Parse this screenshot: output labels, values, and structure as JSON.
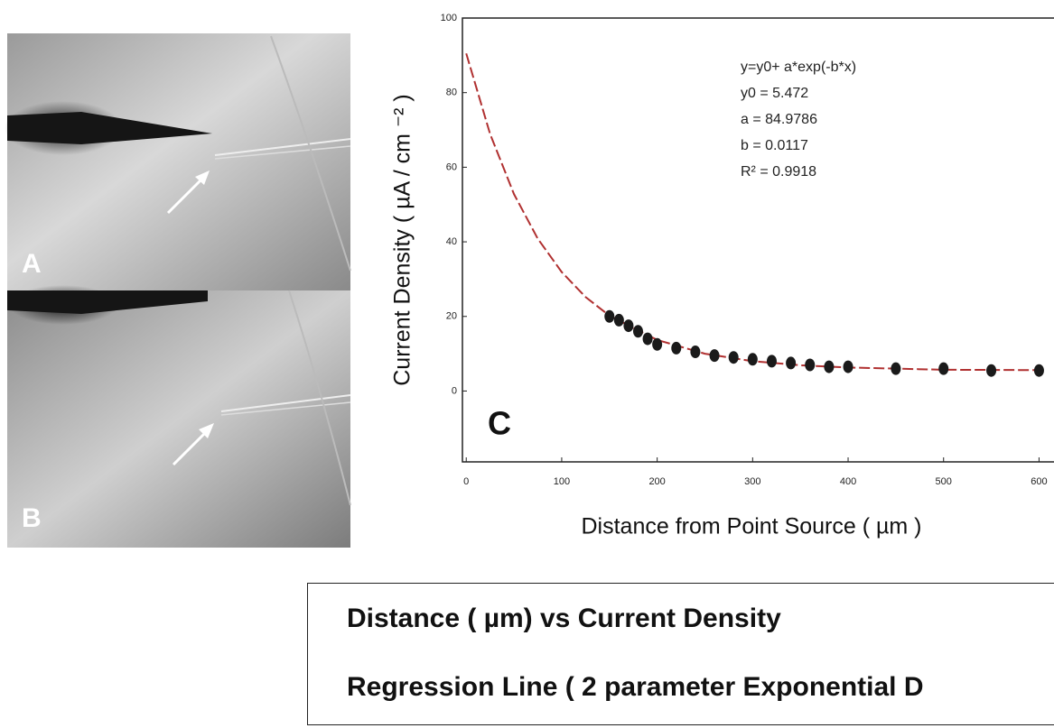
{
  "panels": {
    "a": "A",
    "b": "B"
  },
  "chart_data": {
    "type": "scatter",
    "panel_label": "C",
    "x_label": "Distance from Point Source ( µm )",
    "y_label": "Current Density ( µA / cm ⁻² )",
    "annotations": [
      "y=y0+ a*exp(-b*x)",
      "y0 = 5.472",
      "a = 84.9786",
      "b = 0.0117",
      "R² = 0.9918"
    ],
    "xlim": [
      -4,
      610
    ],
    "ylim": [
      -19,
      100
    ],
    "xticks": [
      0,
      100,
      200,
      300,
      400,
      500,
      600
    ],
    "yticks": [
      0,
      20,
      40,
      60,
      80,
      100
    ],
    "series": [
      {
        "name": "Distance ( µm) vs Current Density",
        "color": "#1a1a1a",
        "x": [
          150,
          160,
          170,
          180,
          190,
          200,
          220,
          240,
          260,
          280,
          300,
          320,
          340,
          360,
          380,
          400,
          450,
          500,
          550,
          600
        ],
        "values": [
          20,
          19,
          17.5,
          16,
          14,
          12.5,
          11.5,
          10.5,
          9.5,
          9,
          8.5,
          8,
          7.5,
          7,
          6.5,
          6.5,
          6,
          6,
          5.5,
          5.5
        ]
      },
      {
        "name": "Regression Line ( 2 parameter Exponential D",
        "color": "#b03030",
        "x": [
          0,
          25,
          50,
          75,
          100,
          125,
          150,
          200,
          250,
          300,
          350,
          400,
          500,
          600
        ],
        "values": [
          90.5,
          68.9,
          52.8,
          40.8,
          31.9,
          25.2,
          20.2,
          13.7,
          10.0,
          8.0,
          6.9,
          6.3,
          5.7,
          5.6
        ]
      }
    ]
  }
}
